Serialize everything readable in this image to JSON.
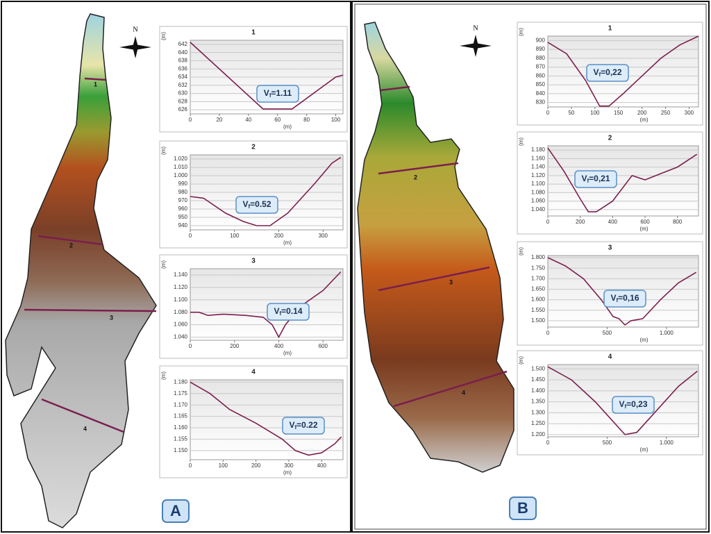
{
  "panels": [
    {
      "label": "A",
      "north": "N"
    },
    {
      "label": "B",
      "north": "N"
    }
  ],
  "chart_data": [
    {
      "type": "line",
      "title": "1",
      "x_label": "(m)",
      "y_label": "(m)",
      "annotation": [
        "V",
        "f",
        "=1.11"
      ],
      "color": "#7b1e4e",
      "x": [
        0,
        50,
        70,
        100,
        105
      ],
      "values": [
        642.5,
        626.2,
        626.2,
        634,
        634.5
      ],
      "xlim": [
        0,
        105
      ],
      "ylim": [
        625,
        643
      ],
      "xticks": [
        0,
        20,
        40,
        60,
        80,
        100
      ],
      "yticks": [
        626,
        628,
        630,
        632,
        634,
        636,
        638,
        640,
        642
      ],
      "grid": true
    },
    {
      "type": "line",
      "title": "2",
      "x_label": "(m)",
      "y_label": "(m)",
      "annotation": [
        "V",
        "f",
        "=0.52"
      ],
      "color": "#7b1e4e",
      "x": [
        0,
        30,
        80,
        120,
        150,
        180,
        220,
        280,
        320,
        340
      ],
      "values": [
        975,
        973,
        955,
        945,
        940,
        940,
        955,
        990,
        1015,
        1022
      ],
      "xlim": [
        0,
        345
      ],
      "ylim": [
        935,
        1025
      ],
      "xticks": [
        0,
        100,
        200,
        300
      ],
      "yticks": [
        940,
        950,
        960,
        970,
        980,
        990,
        {
          "value": 1000,
          "label": "1.000"
        },
        {
          "value": 1010,
          "label": "1.010"
        },
        {
          "value": 1020,
          "label": "1.020"
        }
      ],
      "grid": true
    },
    {
      "type": "line",
      "title": "3",
      "x_label": "(m)",
      "y_label": "(m)",
      "annotation": [
        "V",
        "f",
        "=0.14"
      ],
      "color": "#7b1e4e",
      "x": [
        0,
        40,
        80,
        150,
        250,
        330,
        370,
        400,
        430,
        500,
        600,
        680
      ],
      "values": [
        1080,
        1080,
        1075,
        1077,
        1075,
        1072,
        1060,
        1040,
        1060,
        1090,
        1115,
        1145
      ],
      "xlim": [
        0,
        690
      ],
      "ylim": [
        1035,
        1150
      ],
      "xticks": [
        0,
        200,
        400,
        600
      ],
      "yticks": [
        {
          "value": 1040,
          "label": "1.040"
        },
        {
          "value": 1060,
          "label": "1.060"
        },
        {
          "value": 1080,
          "label": "1.080"
        },
        {
          "value": 1100,
          "label": "1.100"
        },
        {
          "value": 1120,
          "label": "1.120"
        },
        {
          "value": 1140,
          "label": "1.140"
        }
      ],
      "grid": true
    },
    {
      "type": "line",
      "title": "4",
      "x_label": "(m)",
      "y_label": "(m)",
      "annotation": [
        "V",
        "f",
        "=0.22"
      ],
      "color": "#7b1e4e",
      "x": [
        0,
        60,
        120,
        200,
        280,
        320,
        360,
        400,
        440,
        460
      ],
      "values": [
        1180,
        1175,
        1168,
        1162,
        1155,
        1150,
        1148,
        1149,
        1153,
        1156
      ],
      "xlim": [
        0,
        465
      ],
      "ylim": [
        1146,
        1181
      ],
      "xticks": [
        0,
        100,
        200,
        300,
        400
      ],
      "yticks": [
        {
          "value": 1150,
          "label": "1.150"
        },
        {
          "value": 1155,
          "label": "1.155"
        },
        {
          "value": 1160,
          "label": "1.160"
        },
        {
          "value": 1165,
          "label": "1.165"
        },
        {
          "value": 1170,
          "label": "1.170"
        },
        {
          "value": 1175,
          "label": "1.175"
        },
        {
          "value": 1180,
          "label": "1.180"
        }
      ],
      "grid": true
    },
    {
      "type": "line",
      "title": "1",
      "x_label": "(m)",
      "y_label": "(m)",
      "annotation": [
        "V",
        "f",
        "=0,22"
      ],
      "color": "#7b1e4e",
      "x": [
        0,
        40,
        80,
        110,
        130,
        160,
        200,
        240,
        280,
        320
      ],
      "values": [
        898,
        885,
        855,
        826,
        826,
        840,
        860,
        880,
        895,
        905
      ],
      "xlim": [
        0,
        320
      ],
      "ylim": [
        825,
        905
      ],
      "xticks": [
        0,
        50,
        100,
        150,
        200,
        250,
        300
      ],
      "yticks": [
        830,
        840,
        850,
        860,
        870,
        880,
        890,
        900
      ],
      "grid": true
    },
    {
      "type": "line",
      "title": "2",
      "x_label": "(m)",
      "y_label": "(m)",
      "annotation": [
        "V",
        "f",
        "=0,21"
      ],
      "color": "#7b1e4e",
      "x": [
        0,
        100,
        200,
        250,
        300,
        400,
        520,
        600,
        700,
        800,
        920
      ],
      "values": [
        1185,
        1130,
        1065,
        1035,
        1035,
        1060,
        1120,
        1110,
        1125,
        1140,
        1170
      ],
      "xlim": [
        0,
        930
      ],
      "ylim": [
        1025,
        1190
      ],
      "xticks": [
        0,
        200,
        400,
        600,
        800
      ],
      "yticks": [
        {
          "value": 1040,
          "label": "1.040"
        },
        {
          "value": 1060,
          "label": "1.060"
        },
        {
          "value": 1080,
          "label": "1.080"
        },
        {
          "value": 1100,
          "label": "1.100"
        },
        {
          "value": 1120,
          "label": "1.120"
        },
        {
          "value": 1140,
          "label": "1.140"
        },
        {
          "value": 1160,
          "label": "1.160"
        },
        {
          "value": 1180,
          "label": "1.180"
        }
      ],
      "grid": true
    },
    {
      "type": "line",
      "title": "3",
      "x_label": "(m)",
      "y_label": "(m)",
      "annotation": [
        "V",
        "f",
        "=0,16"
      ],
      "color": "#7b1e4e",
      "x": [
        0,
        150,
        300,
        450,
        550,
        600,
        650,
        700,
        800,
        950,
        1100,
        1250
      ],
      "values": [
        1800,
        1760,
        1700,
        1600,
        1520,
        1510,
        1480,
        1500,
        1510,
        1600,
        1680,
        1730
      ],
      "xlim": [
        0,
        1270
      ],
      "ylim": [
        1470,
        1810
      ],
      "xticks": [
        0,
        500,
        {
          "value": 1000,
          "label": "1.000"
        }
      ],
      "yticks": [
        {
          "value": 1500,
          "label": "1.500"
        },
        {
          "value": 1550,
          "label": "1.550"
        },
        {
          "value": 1600,
          "label": "1.600"
        },
        {
          "value": 1650,
          "label": "1.650"
        },
        {
          "value": 1700,
          "label": "1.700"
        },
        {
          "value": 1750,
          "label": "1.750"
        },
        {
          "value": 1800,
          "label": "1.800"
        }
      ],
      "grid": true
    },
    {
      "type": "line",
      "title": "4",
      "x_label": "(m)",
      "y_label": "(m)",
      "annotation": [
        "V",
        "f",
        "=0,23"
      ],
      "color": "#7b1e4e",
      "x": [
        0,
        200,
        400,
        600,
        650,
        750,
        900,
        1100,
        1260
      ],
      "values": [
        1510,
        1450,
        1350,
        1230,
        1200,
        1210,
        1300,
        1420,
        1490
      ],
      "xlim": [
        0,
        1270
      ],
      "ylim": [
        1190,
        1520
      ],
      "xticks": [
        0,
        500,
        {
          "value": 1000,
          "label": "1.000"
        }
      ],
      "yticks": [
        {
          "value": 1200,
          "label": "1.200"
        },
        {
          "value": 1250,
          "label": "1.250"
        },
        {
          "value": 1300,
          "label": "1.300"
        },
        {
          "value": 1350,
          "label": "1.350"
        },
        {
          "value": 1400,
          "label": "1.400"
        },
        {
          "value": 1450,
          "label": "1.450"
        },
        {
          "value": 1500,
          "label": "1.500"
        }
      ],
      "grid": true
    }
  ]
}
